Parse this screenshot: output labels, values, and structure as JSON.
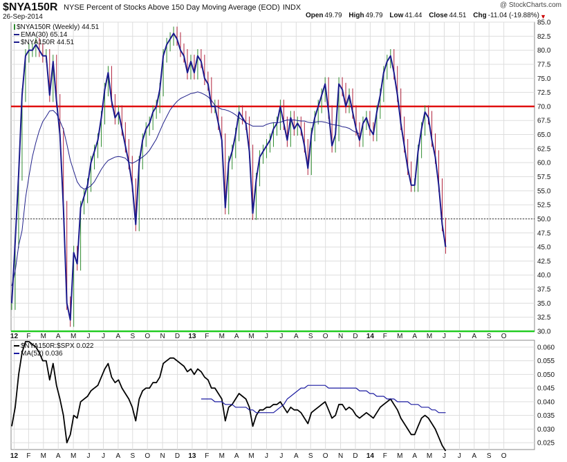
{
  "header": {
    "symbol": "$NYA150R",
    "description": "NYSE Percent of Stocks Above 150 Day Moving Average (EOD)",
    "exchange": "INDX",
    "date": "26-Sep-2014",
    "brand": "@ StockCharts.com",
    "open_label": "Open",
    "open_value": "49.79",
    "high_label": "High",
    "high_value": "49.79",
    "low_label": "Low",
    "low_value": "41.44",
    "close_label": "Close",
    "close_value": "44.51",
    "chg_label": "Chg",
    "chg_value": "-11.04 (-19.88%)",
    "down_arrow": "▼"
  },
  "colors": {
    "price": "#1a1a8c",
    "ema": "#20208a",
    "up_bar": "#2e8b2e",
    "down_bar": "#b0203a",
    "resistance": "#e01010",
    "support": "#22cc22",
    "grid": "#dddddd",
    "ratio_line": "#000000",
    "ratio_ma": "#1a1aa0"
  },
  "chart_data": [
    {
      "type": "line",
      "legend": [
        "$NYA150R (Weekly) 44.51",
        "EMA(30) 65.14",
        "$NYA150R 44.51"
      ],
      "ylim": [
        30,
        85
      ],
      "y_ticks": [
        "85.0",
        "82.5",
        "80.0",
        "77.5",
        "75.0",
        "72.5",
        "70.0",
        "67.5",
        "65.0",
        "62.5",
        "60.0",
        "57.5",
        "55.0",
        "52.5",
        "50.0",
        "47.5",
        "45.0",
        "42.5",
        "40.0",
        "37.5",
        "35.0",
        "32.5",
        "30.0"
      ],
      "x_labels": [
        "12",
        "F",
        "M",
        "A",
        "M",
        "J",
        "J",
        "A",
        "S",
        "O",
        "N",
        "D",
        "13",
        "F",
        "M",
        "A",
        "M",
        "J",
        "J",
        "A",
        "S",
        "O",
        "N",
        "D",
        "14",
        "F",
        "M",
        "A",
        "M",
        "J",
        "J",
        "A",
        "S",
        "O"
      ],
      "x_label_pos": [
        0.7,
        4.9,
        9.2,
        13.5,
        17.9,
        22.3,
        26.6,
        30.9,
        35.1,
        39.4,
        43.8,
        48.1,
        52.4,
        56.7,
        61.0,
        65.3,
        69.6,
        74.0,
        78.3,
        82.6,
        86.8,
        91.1,
        95.5,
        99.8,
        104.1,
        108.4,
        112.7,
        117.0,
        121.3,
        125.6,
        130.0,
        134.3,
        138.6,
        142.9
      ],
      "bold_labels": [
        "12",
        "13",
        "14"
      ],
      "horizontal_lines": [
        {
          "name": "resistance",
          "value": 70,
          "style": "solid"
        },
        {
          "name": "midline",
          "value": 50,
          "style": "dotted"
        },
        {
          "name": "support",
          "value": 30,
          "style": "solid"
        }
      ],
      "series_close": [
        35,
        46,
        58,
        72,
        79,
        80,
        80,
        81,
        80,
        79,
        79,
        72,
        78,
        71,
        65,
        52,
        35,
        32,
        44,
        42,
        52,
        54,
        56,
        60,
        62,
        64,
        68,
        73,
        76,
        71,
        68,
        69,
        66,
        63,
        60,
        56,
        49,
        60,
        64,
        66,
        67,
        69,
        70,
        73,
        79,
        81,
        82,
        83,
        82,
        80,
        79,
        76,
        78,
        76,
        79,
        78,
        75,
        74,
        70,
        70,
        67,
        64,
        52,
        60,
        62,
        65,
        69,
        68,
        67,
        62,
        51,
        57,
        61,
        62,
        63,
        64,
        66,
        67,
        70,
        67,
        64,
        68,
        66,
        67,
        66,
        63,
        59,
        65,
        68,
        70,
        72,
        74,
        69,
        63,
        65,
        74,
        73,
        70,
        72,
        69,
        66,
        64,
        67,
        68,
        66,
        65,
        69,
        72,
        76,
        78,
        79,
        76,
        72,
        67,
        63,
        59,
        56,
        56,
        62,
        66,
        69,
        68,
        64,
        61,
        56,
        49,
        45
      ],
      "series_ema": [
        38.1,
        40.7,
        45.3,
        47.9,
        53.7,
        57.6,
        61.1,
        63.6,
        65.7,
        67.3,
        68.2,
        69.2,
        69.3,
        68.7,
        67.4,
        65.9,
        63.3,
        60.4,
        58.5,
        56.6,
        55.7,
        55.3,
        55.5,
        55.9,
        56.6,
        57.7,
        58.8,
        59.7,
        60.4,
        60.7,
        61.0,
        61.1,
        61.0,
        60.8,
        60.1,
        59.9,
        60.2,
        60.6,
        61.0,
        61.5,
        62.2,
        63.2,
        64.2,
        65.6,
        67.0,
        68.2,
        69.4,
        70.2,
        70.9,
        71.4,
        71.7,
        72.0,
        72.3,
        72.4,
        72.6,
        72.4,
        72.1,
        71.7,
        71.1,
        70.2,
        69.8,
        69.5,
        69.4,
        69.2,
        68.9,
        68.5,
        68.0,
        67.6,
        67.1,
        66.8,
        66.5,
        66.5,
        66.5,
        66.5,
        66.8,
        67.0,
        67.1,
        67.1,
        67.2,
        67.4,
        67.6,
        67.6,
        67.6,
        67.5,
        67.4,
        67.4,
        67.2,
        67.1,
        67.2,
        67.3,
        67.3,
        67.2,
        67.0,
        66.8,
        66.7,
        66.6,
        66.4,
        66.3,
        66.1,
        65.7,
        65.4,
        65.14
      ]
    },
    {
      "type": "line",
      "legend": [
        "$NYA150R:$SPX 0.022",
        "MA(52) 0.036"
      ],
      "ylim": [
        0.0225,
        0.0625
      ],
      "y_ticks": [
        "0.060",
        "0.055",
        "0.050",
        "0.045",
        "0.040",
        "0.035",
        "0.030",
        "0.025"
      ],
      "series_ratio": [
        0.031,
        0.038,
        0.05,
        0.058,
        0.062,
        0.062,
        0.061,
        0.06,
        0.058,
        0.055,
        0.055,
        0.048,
        0.054,
        0.046,
        0.041,
        0.035,
        0.025,
        0.028,
        0.035,
        0.034,
        0.04,
        0.041,
        0.042,
        0.044,
        0.045,
        0.046,
        0.049,
        0.052,
        0.054,
        0.049,
        0.047,
        0.048,
        0.045,
        0.043,
        0.041,
        0.038,
        0.033,
        0.041,
        0.044,
        0.045,
        0.045,
        0.047,
        0.047,
        0.049,
        0.054,
        0.055,
        0.056,
        0.056,
        0.055,
        0.054,
        0.053,
        0.051,
        0.052,
        0.05,
        0.052,
        0.051,
        0.049,
        0.048,
        0.045,
        0.045,
        0.043,
        0.041,
        0.033,
        0.038,
        0.039,
        0.041,
        0.043,
        0.042,
        0.041,
        0.038,
        0.031,
        0.035,
        0.037,
        0.037,
        0.038,
        0.038,
        0.039,
        0.039,
        0.04,
        0.038,
        0.036,
        0.038,
        0.037,
        0.037,
        0.036,
        0.034,
        0.032,
        0.036,
        0.037,
        0.038,
        0.039,
        0.04,
        0.037,
        0.034,
        0.035,
        0.039,
        0.039,
        0.037,
        0.038,
        0.037,
        0.035,
        0.034,
        0.035,
        0.036,
        0.035,
        0.034,
        0.036,
        0.038,
        0.039,
        0.04,
        0.041,
        0.039,
        0.037,
        0.034,
        0.032,
        0.03,
        0.028,
        0.028,
        0.031,
        0.034,
        0.035,
        0.034,
        0.032,
        0.03,
        0.027,
        0.024,
        0.022
      ],
      "series_ma": [
        0.041,
        0.041,
        0.041,
        0.041,
        0.04,
        0.04,
        0.04,
        0.039,
        0.039,
        0.039,
        0.038,
        0.038,
        0.038,
        0.038,
        0.037,
        0.037,
        0.036,
        0.036,
        0.036,
        0.036,
        0.036,
        0.036,
        0.037,
        0.038,
        0.039,
        0.041,
        0.042,
        0.043,
        0.044,
        0.045,
        0.045,
        0.046,
        0.046,
        0.046,
        0.046,
        0.046,
        0.046,
        0.045,
        0.045,
        0.045,
        0.045,
        0.045,
        0.045,
        0.045,
        0.045,
        0.045,
        0.044,
        0.044,
        0.044,
        0.043,
        0.043,
        0.042,
        0.042,
        0.042,
        0.041,
        0.041,
        0.041,
        0.04,
        0.04,
        0.04,
        0.04,
        0.039,
        0.039,
        0.039,
        0.038,
        0.038,
        0.038,
        0.037,
        0.037,
        0.036,
        0.036,
        0.036
      ]
    }
  ]
}
